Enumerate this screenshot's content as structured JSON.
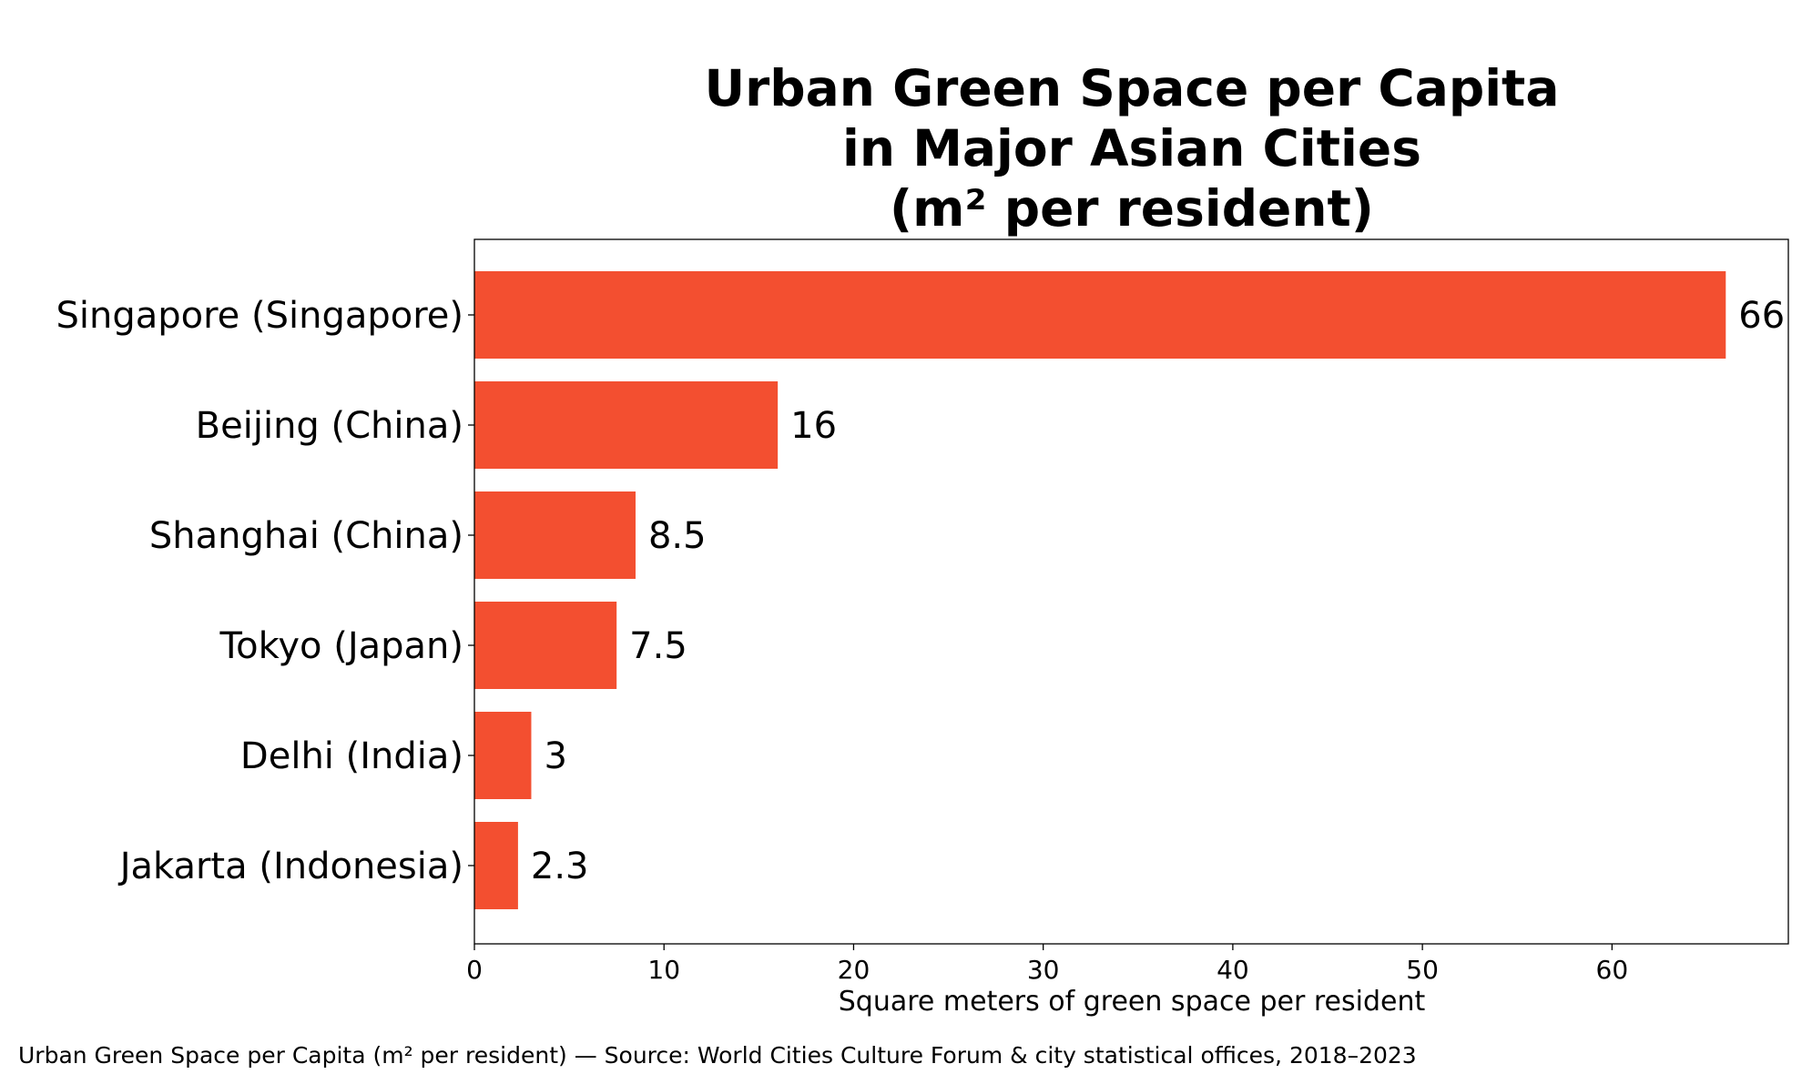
{
  "chart_data": {
    "type": "bar",
    "orientation": "horizontal",
    "title_lines": [
      "Urban Green Space per Capita",
      "in Major Asian Cities",
      "(m² per resident)"
    ],
    "categories": [
      "Singapore (Singapore)",
      "Beijing (China)",
      "Shanghai (China)",
      "Tokyo (Japan)",
      "Delhi (India)",
      "Jakarta (Indonesia)"
    ],
    "values": [
      66,
      16,
      8.5,
      7.5,
      3,
      2.3
    ],
    "value_labels": [
      "66",
      "16",
      "8.5",
      "7.5",
      "3",
      "2.3"
    ],
    "xlabel": "Square meters of green space per resident",
    "ylabel": "",
    "xlim": [
      0,
      69.3
    ],
    "xticks": [
      0,
      10,
      20,
      30,
      40,
      50,
      60
    ],
    "xtick_labels": [
      "0",
      "10",
      "20",
      "30",
      "40",
      "50",
      "60"
    ],
    "grid": false,
    "bar_color": "#f34f30",
    "footer": "Urban Green Space per Capita (m² per resident) — Source: World Cities Culture Forum & city statistical offices, 2018–2023"
  }
}
